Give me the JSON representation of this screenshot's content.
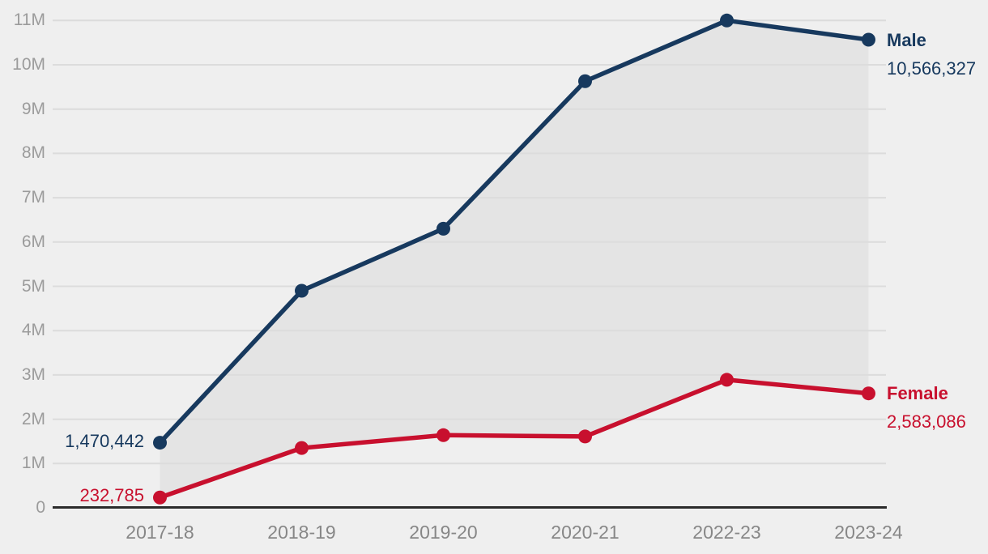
{
  "palette": {
    "background": "#efefef",
    "band_fill": "#e4e4e4",
    "gridline": "#dcdcdc",
    "axis_line": "#2b2b2b",
    "male_color": "#17395e",
    "female_color": "#c8102e",
    "ytick_color": "#9b9b9b",
    "xtick_color": "#878787"
  },
  "chart_data": {
    "type": "line",
    "title": "",
    "xlabel": "",
    "ylabel": "",
    "categories": [
      "2017-18",
      "2018-19",
      "2019-20",
      "2020-21",
      "2022-23",
      "2023-24"
    ],
    "series": [
      {
        "name": "Male",
        "color": "#17395e",
        "values": [
          1470442,
          4900000,
          6300000,
          9630000,
          11000000,
          10566327
        ]
      },
      {
        "name": "Female",
        "color": "#c8102e",
        "values": [
          232785,
          1350000,
          1640000,
          1610000,
          2890000,
          2583086
        ]
      }
    ],
    "ylim": [
      0,
      11000000
    ],
    "ytick_interval": 1000000,
    "ytick_labels": [
      "0",
      "1M",
      "2M",
      "3M",
      "4M",
      "5M",
      "6M",
      "7M",
      "8M",
      "9M",
      "10M",
      "11M"
    ],
    "grid": "horizontal-only",
    "legend_position": "direct-labels-at-line-ends",
    "band_between_series": true,
    "annotations": {
      "male_first_value": "1,470,442",
      "female_first_value": "232,785",
      "male_last_value": "10,566,327",
      "female_last_value": "2,583,086"
    }
  },
  "labels": {
    "male": "Male",
    "female": "Female"
  }
}
